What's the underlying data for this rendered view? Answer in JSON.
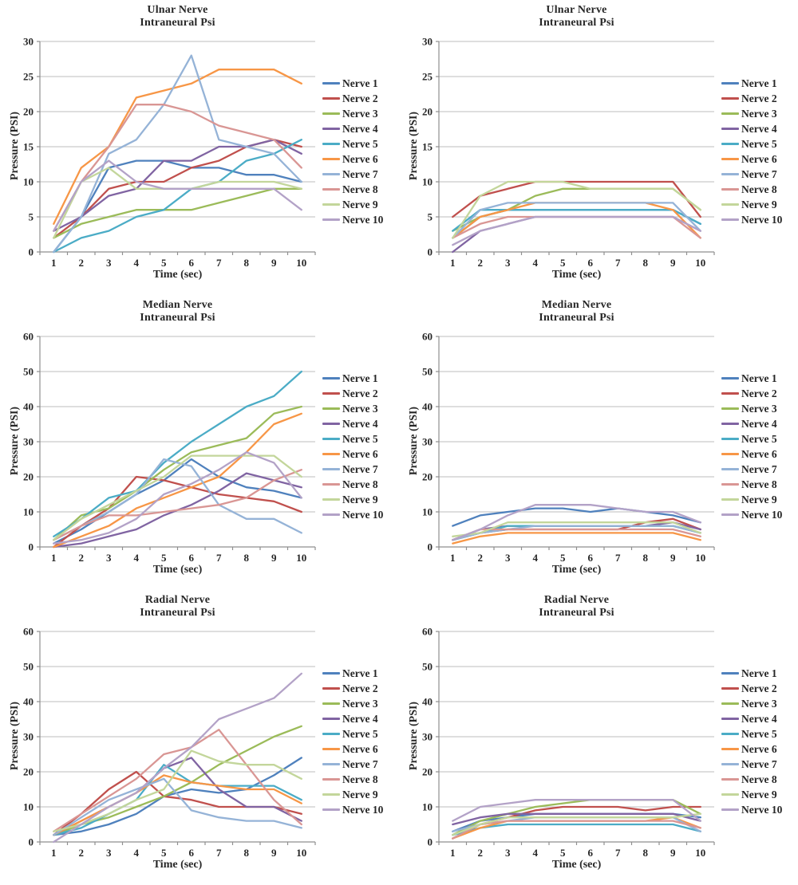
{
  "style": {
    "background": "#ffffff",
    "grid_color": "#c9c9c9",
    "axis_color": "#8f8f8f",
    "text_color": "#262626",
    "series_colors": {
      "Nerve 1": "#4F81BD",
      "Nerve 2": "#C0504D",
      "Nerve 3": "#9BBB59",
      "Nerve 4": "#8064A2",
      "Nerve 5": "#4BACC6",
      "Nerve 6": "#F79646",
      "Nerve 7": "#95B3D7",
      "Nerve 8": "#D99694",
      "Nerve 9": "#C3D69B",
      "Nerve 10": "#B3A2C7"
    }
  },
  "chart_data": [
    {
      "type": "line",
      "title": "Ulnar Nerve",
      "subtitle": "Intraneural Psi",
      "xlabel": "Time (sec)",
      "ylabel": "Pressure (PSI)",
      "x": [
        1,
        2,
        3,
        4,
        5,
        6,
        7,
        8,
        9,
        10
      ],
      "ylim": [
        0,
        30
      ],
      "yticks": [
        0,
        5,
        10,
        15,
        20,
        25,
        30
      ],
      "grid": true,
      "legend_position": "right",
      "series": [
        {
          "name": "Nerve 1",
          "values": [
            0,
            5,
            12,
            13,
            13,
            12,
            12,
            11,
            11,
            10
          ]
        },
        {
          "name": "Nerve 2",
          "values": [
            2,
            5,
            9,
            10,
            10,
            12,
            13,
            15,
            16,
            15
          ]
        },
        {
          "name": "Nerve 3",
          "values": [
            2,
            4,
            5,
            6,
            6,
            6,
            7,
            8,
            9,
            9
          ]
        },
        {
          "name": "Nerve 4",
          "values": [
            3,
            5,
            8,
            9,
            13,
            13,
            15,
            15,
            16,
            14
          ]
        },
        {
          "name": "Nerve 5",
          "values": [
            0,
            2,
            3,
            5,
            6,
            9,
            10,
            13,
            14,
            16
          ]
        },
        {
          "name": "Nerve 6",
          "values": [
            4,
            12,
            15,
            22,
            23,
            24,
            26,
            26,
            26,
            24
          ]
        },
        {
          "name": "Nerve 7",
          "values": [
            0,
            5,
            14,
            16,
            21,
            28,
            16,
            15,
            14,
            10
          ]
        },
        {
          "name": "Nerve 8",
          "values": [
            3,
            10,
            15,
            21,
            21,
            20,
            18,
            17,
            16,
            12
          ]
        },
        {
          "name": "Nerve 9",
          "values": [
            2,
            10,
            12,
            9,
            9,
            9,
            10,
            10,
            10,
            9
          ]
        },
        {
          "name": "Nerve 10",
          "values": [
            3,
            10,
            13,
            10,
            9,
            9,
            9,
            9,
            9,
            6
          ]
        }
      ]
    },
    {
      "type": "line",
      "title": "Ulnar Nerve",
      "subtitle": "Intraneural Psi",
      "xlabel": "Time (sec)",
      "ylabel": "Pressure (PSI)",
      "x": [
        1,
        2,
        3,
        4,
        5,
        6,
        7,
        8,
        9,
        10
      ],
      "ylim": [
        0,
        30
      ],
      "yticks": [
        0,
        5,
        10,
        15,
        20,
        25,
        30
      ],
      "grid": true,
      "legend_position": "right",
      "series": [
        {
          "name": "Nerve 1",
          "values": [
            2,
            5,
            6,
            6,
            6,
            6,
            6,
            6,
            6,
            4
          ]
        },
        {
          "name": "Nerve 2",
          "values": [
            5,
            8,
            9,
            10,
            10,
            10,
            10,
            10,
            10,
            5
          ]
        },
        {
          "name": "Nerve 3",
          "values": [
            3,
            5,
            6,
            8,
            9,
            9,
            9,
            9,
            9,
            6
          ]
        },
        {
          "name": "Nerve 4",
          "values": [
            0,
            3,
            4,
            5,
            5,
            5,
            5,
            5,
            5,
            3
          ]
        },
        {
          "name": "Nerve 5",
          "values": [
            3,
            6,
            6,
            6,
            6,
            6,
            6,
            6,
            6,
            4
          ]
        },
        {
          "name": "Nerve 6",
          "values": [
            2,
            5,
            6,
            7,
            7,
            7,
            7,
            7,
            6,
            2
          ]
        },
        {
          "name": "Nerve 7",
          "values": [
            2,
            6,
            7,
            7,
            7,
            7,
            7,
            7,
            7,
            3
          ]
        },
        {
          "name": "Nerve 8",
          "values": [
            2,
            4,
            5,
            5,
            5,
            5,
            5,
            5,
            5,
            2
          ]
        },
        {
          "name": "Nerve 9",
          "values": [
            2,
            8,
            10,
            10,
            10,
            9,
            9,
            9,
            9,
            6
          ]
        },
        {
          "name": "Nerve 10",
          "values": [
            1,
            3,
            4,
            5,
            5,
            5,
            5,
            5,
            5,
            3
          ]
        }
      ]
    },
    {
      "type": "line",
      "title": "Median Nerve",
      "subtitle": "Intraneural Psi",
      "xlabel": "Time (sec)",
      "ylabel": "Pressure (PSI)",
      "x": [
        1,
        2,
        3,
        4,
        5,
        6,
        7,
        8,
        9,
        10
      ],
      "ylim": [
        0,
        60
      ],
      "yticks": [
        0,
        10,
        20,
        30,
        40,
        50,
        60
      ],
      "grid": true,
      "legend_position": "right",
      "series": [
        {
          "name": "Nerve 1",
          "values": [
            1,
            5,
            10,
            15,
            19,
            25,
            20,
            17,
            16,
            14
          ]
        },
        {
          "name": "Nerve 2",
          "values": [
            0,
            6,
            11,
            20,
            19,
            17,
            15,
            14,
            13,
            10
          ]
        },
        {
          "name": "Nerve 3",
          "values": [
            2,
            9,
            11,
            16,
            22,
            27,
            29,
            31,
            38,
            40
          ]
        },
        {
          "name": "Nerve 4",
          "values": [
            0,
            1,
            3,
            5,
            9,
            12,
            16,
            21,
            19,
            17
          ]
        },
        {
          "name": "Nerve 5",
          "values": [
            3,
            8,
            14,
            16,
            24,
            30,
            35,
            40,
            43,
            50
          ]
        },
        {
          "name": "Nerve 6",
          "values": [
            0,
            3,
            6,
            11,
            14,
            17,
            20,
            27,
            35,
            38
          ]
        },
        {
          "name": "Nerve 7",
          "values": [
            2,
            6,
            10,
            15,
            25,
            23,
            12,
            8,
            8,
            4
          ]
        },
        {
          "name": "Nerve 8",
          "values": [
            2,
            6,
            9,
            9,
            10,
            11,
            12,
            14,
            19,
            22
          ]
        },
        {
          "name": "Nerve 9",
          "values": [
            2,
            8,
            12,
            16,
            20,
            26,
            26,
            26,
            26,
            20
          ]
        },
        {
          "name": "Nerve 10",
          "values": [
            1,
            2,
            4,
            8,
            15,
            18,
            22,
            27,
            24,
            14
          ]
        }
      ]
    },
    {
      "type": "line",
      "title": "Median Nerve",
      "subtitle": "Intraneural Psi",
      "xlabel": "Time (sec)",
      "ylabel": "Pressure (PSI)",
      "x": [
        1,
        2,
        3,
        4,
        5,
        6,
        7,
        8,
        9,
        10
      ],
      "ylim": [
        0,
        60
      ],
      "yticks": [
        0,
        10,
        20,
        30,
        40,
        50,
        60
      ],
      "grid": true,
      "legend_position": "right",
      "series": [
        {
          "name": "Nerve 1",
          "values": [
            6,
            9,
            10,
            11,
            11,
            10,
            11,
            10,
            9,
            7
          ]
        },
        {
          "name": "Nerve 2",
          "values": [
            2,
            4,
            5,
            5,
            5,
            5,
            5,
            7,
            8,
            5
          ]
        },
        {
          "name": "Nerve 3",
          "values": [
            2,
            4,
            6,
            6,
            6,
            6,
            6,
            6,
            6,
            4
          ]
        },
        {
          "name": "Nerve 4",
          "values": [
            2,
            5,
            6,
            6,
            6,
            6,
            6,
            6,
            7,
            5
          ]
        },
        {
          "name": "Nerve 5",
          "values": [
            2,
            4,
            6,
            6,
            6,
            6,
            6,
            6,
            6,
            4
          ]
        },
        {
          "name": "Nerve 6",
          "values": [
            1,
            3,
            4,
            4,
            4,
            4,
            4,
            4,
            4,
            2
          ]
        },
        {
          "name": "Nerve 7",
          "values": [
            2,
            4,
            5,
            6,
            6,
            6,
            6,
            6,
            6,
            4
          ]
        },
        {
          "name": "Nerve 8",
          "values": [
            2,
            5,
            5,
            5,
            5,
            5,
            5,
            5,
            5,
            3
          ]
        },
        {
          "name": "Nerve 9",
          "values": [
            3,
            4,
            7,
            7,
            7,
            7,
            7,
            7,
            7,
            4
          ]
        },
        {
          "name": "Nerve 10",
          "values": [
            2,
            5,
            9,
            12,
            12,
            12,
            11,
            10,
            10,
            7
          ]
        }
      ]
    },
    {
      "type": "line",
      "title": "Radial Nerve",
      "subtitle": "Intraneural Psi",
      "xlabel": "Time (sec)",
      "ylabel": "Pressure (PSI)",
      "x": [
        1,
        2,
        3,
        4,
        5,
        6,
        7,
        8,
        9,
        10
      ],
      "ylim": [
        0,
        60
      ],
      "yticks": [
        0,
        10,
        20,
        30,
        40,
        50,
        60
      ],
      "grid": true,
      "legend_position": "right",
      "series": [
        {
          "name": "Nerve 1",
          "values": [
            2,
            3,
            5,
            8,
            13,
            15,
            14,
            15,
            19,
            24
          ]
        },
        {
          "name": "Nerve 2",
          "values": [
            2,
            8,
            15,
            20,
            13,
            12,
            10,
            10,
            10,
            8
          ]
        },
        {
          "name": "Nerve 3",
          "values": [
            2,
            5,
            7,
            10,
            13,
            17,
            22,
            26,
            30,
            33
          ]
        },
        {
          "name": "Nerve 4",
          "values": [
            2,
            6,
            10,
            14,
            21,
            24,
            15,
            10,
            10,
            6
          ]
        },
        {
          "name": "Nerve 5",
          "values": [
            2,
            4,
            8,
            12,
            22,
            17,
            16,
            16,
            16,
            12
          ]
        },
        {
          "name": "Nerve 6",
          "values": [
            2,
            6,
            10,
            14,
            19,
            17,
            16,
            15,
            15,
            11
          ]
        },
        {
          "name": "Nerve 7",
          "values": [
            2,
            7,
            12,
            15,
            18,
            9,
            7,
            6,
            6,
            4
          ]
        },
        {
          "name": "Nerve 8",
          "values": [
            3,
            8,
            13,
            18,
            25,
            27,
            32,
            22,
            12,
            5
          ]
        },
        {
          "name": "Nerve 9",
          "values": [
            3,
            5,
            8,
            12,
            15,
            26,
            23,
            22,
            22,
            18
          ]
        },
        {
          "name": "Nerve 10",
          "values": [
            0,
            5,
            10,
            14,
            21,
            27,
            35,
            38,
            41,
            48
          ]
        }
      ]
    },
    {
      "type": "line",
      "title": "Radial Nerve",
      "subtitle": "Intraneural Psi",
      "xlabel": "Time (sec)",
      "ylabel": "Pressure (PSI)",
      "x": [
        1,
        2,
        3,
        4,
        5,
        6,
        7,
        8,
        9,
        10
      ],
      "ylim": [
        0,
        60
      ],
      "yticks": [
        0,
        10,
        20,
        30,
        40,
        50,
        60
      ],
      "grid": true,
      "legend_position": "right",
      "series": [
        {
          "name": "Nerve 1",
          "values": [
            3,
            6,
            7,
            8,
            8,
            8,
            8,
            8,
            8,
            7
          ]
        },
        {
          "name": "Nerve 2",
          "values": [
            1,
            5,
            7,
            9,
            10,
            10,
            10,
            9,
            10,
            10
          ]
        },
        {
          "name": "Nerve 3",
          "values": [
            2,
            6,
            8,
            10,
            11,
            12,
            12,
            12,
            12,
            8
          ]
        },
        {
          "name": "Nerve 4",
          "values": [
            5,
            7,
            8,
            8,
            8,
            8,
            8,
            8,
            8,
            6
          ]
        },
        {
          "name": "Nerve 5",
          "values": [
            2,
            4,
            5,
            5,
            5,
            5,
            5,
            5,
            5,
            3
          ]
        },
        {
          "name": "Nerve 6",
          "values": [
            1,
            4,
            6,
            6,
            6,
            6,
            6,
            6,
            7,
            4
          ]
        },
        {
          "name": "Nerve 7",
          "values": [
            3,
            5,
            6,
            7,
            7,
            7,
            7,
            7,
            7,
            3
          ]
        },
        {
          "name": "Nerve 8",
          "values": [
            1,
            5,
            6,
            6,
            6,
            6,
            6,
            6,
            6,
            4
          ]
        },
        {
          "name": "Nerve 9",
          "values": [
            2,
            5,
            7,
            7,
            7,
            7,
            7,
            7,
            7,
            8
          ]
        },
        {
          "name": "Nerve 10",
          "values": [
            6,
            10,
            11,
            12,
            12,
            12,
            12,
            12,
            12,
            6
          ]
        }
      ]
    }
  ]
}
